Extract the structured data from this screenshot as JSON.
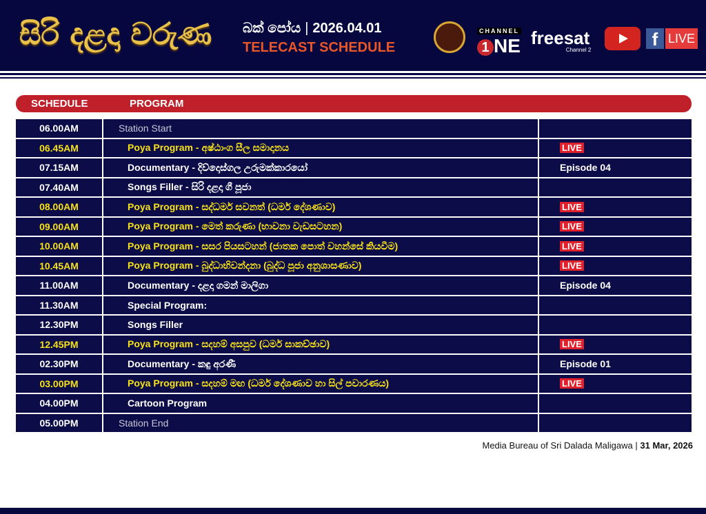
{
  "header": {
    "title": "සිරි දළදා වරුණ",
    "poya": "බක් පෝය",
    "date": "2026.04.01",
    "subtitle": "TELECAST SCHEDULE",
    "channel_label": "CHANNEL",
    "channel_one": "NE",
    "channel_one_digit": "1",
    "freesat": "freesat",
    "freesat_channel": "Channel 2",
    "fb_live": "LIVE",
    "fb_letter": "f"
  },
  "columns": {
    "schedule": "SCHEDULE",
    "program": "PROGRAM"
  },
  "colors": {
    "navy": "#07073f",
    "red": "#c0202a",
    "yellow": "#f7e21a",
    "gold": "#e8c04a"
  },
  "rows": [
    {
      "time": "06.00AM",
      "program": "Station Start",
      "note": "",
      "type": "station"
    },
    {
      "time": "06.45AM",
      "program": "Poya Program - අෂ්ඨාංග සීල සමාදානය",
      "note": "LIVE",
      "type": "poya"
    },
    {
      "time": "07.15AM",
      "program": "Documentary - දිව්දොස්ගල උරුමක්කාරයෝ",
      "note": "Episode 04",
      "type": "normal"
    },
    {
      "time": "07.40AM",
      "program": "Songs Filler - සිරි දළදා ගී පූජා",
      "note": "",
      "type": "normal"
    },
    {
      "time": "08.00AM",
      "program": "Poya Program - සද්ධර්ම සවනත් (ධර්ම දේශණාව)",
      "note": "LIVE",
      "type": "poya"
    },
    {
      "time": "09.00AM",
      "program": "Poya Program - මෙත් කරුණා (භාවනා වැඩසටහන)",
      "note": "LIVE",
      "type": "poya"
    },
    {
      "time": "10.00AM",
      "program": "Poya Program - සසර පියසටහන් (ජාතක පොත් වහන්සේ කියවීම)",
      "note": "LIVE",
      "type": "poya"
    },
    {
      "time": "10.45AM",
      "program": "Poya Program - බුද්ධාභිවන්දනා (බුද්ධ පූජා අනුශාසණාව)",
      "note": "LIVE",
      "type": "poya"
    },
    {
      "time": "11.00AM",
      "program": "Documentary - දළදා ගමන් මාලිගා",
      "note": "Episode 04",
      "type": "normal"
    },
    {
      "time": "11.30AM",
      "program": "Special Program:",
      "note": "",
      "type": "normal"
    },
    {
      "time": "12.30PM",
      "program": "Songs Filler",
      "note": "",
      "type": "normal"
    },
    {
      "time": "12.45PM",
      "program": "Poya Program - සදහම් අසපුව (ධර්ම සාකච්ඡාව)",
      "note": "LIVE",
      "type": "poya"
    },
    {
      "time": "02.30PM",
      "program": "Documentary - කඳු අරණී",
      "note": "Episode 01",
      "type": "normal"
    },
    {
      "time": "03.00PM",
      "program": "Poya Program - සදහම් මඟ (ධර්ම දේශණාව හා සිල් පවාරණය)",
      "note": "LIVE",
      "type": "poya"
    },
    {
      "time": "04.00PM",
      "program": "Cartoon Program",
      "note": "",
      "type": "normal"
    },
    {
      "time": "05.00PM",
      "program": "Station End",
      "note": "",
      "type": "station"
    }
  ],
  "footer": {
    "org": "Media Bureau of Sri Dalada Maligawa",
    "sep": "|",
    "date": "31 Mar, 2026"
  }
}
